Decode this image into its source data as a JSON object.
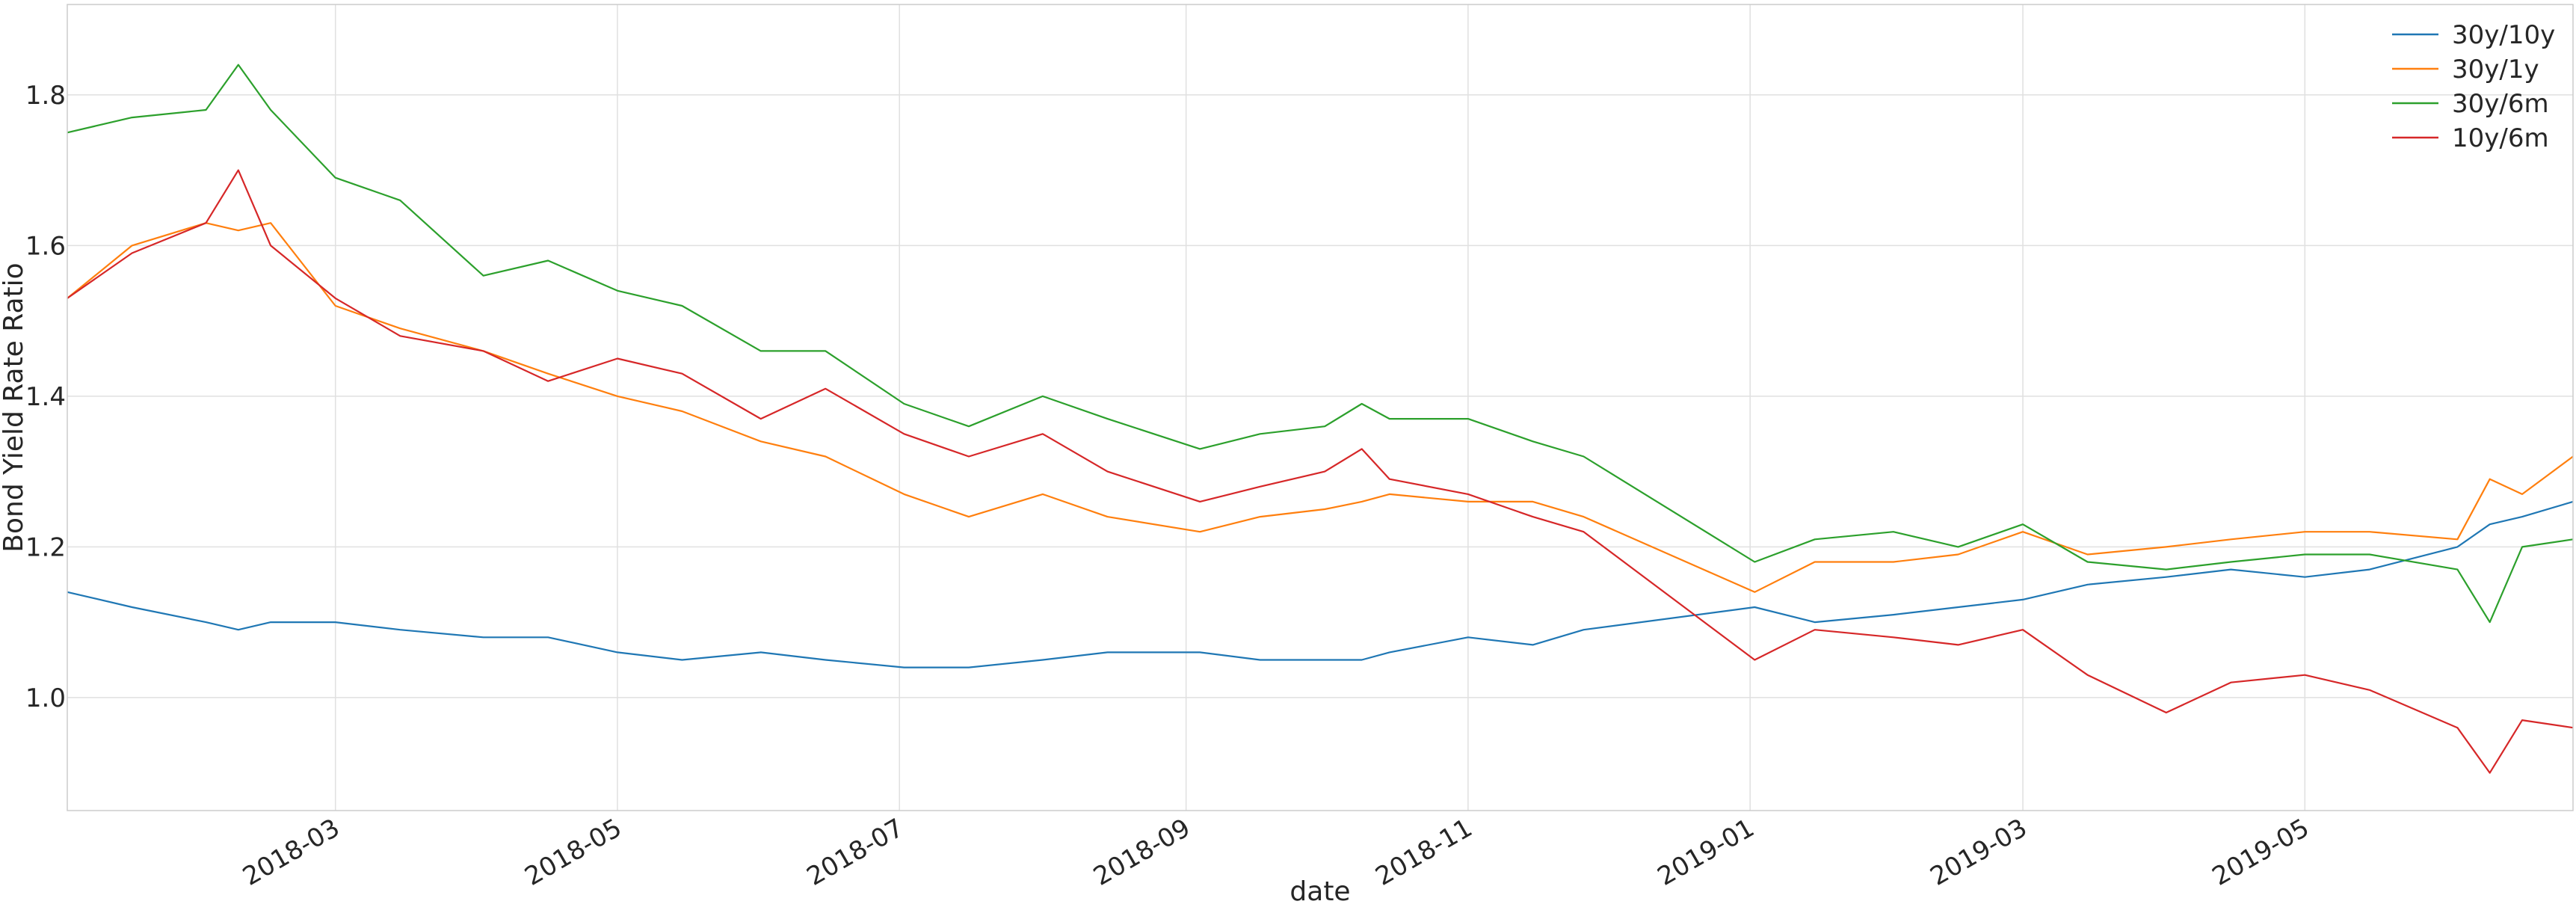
{
  "chart_data": {
    "type": "line",
    "title": "",
    "xlabel": "date",
    "ylabel": "Bond Yield Rate Ratio",
    "xlim": [
      "2018-01-02",
      "2019-06-28"
    ],
    "ylim": [
      0.85,
      1.92
    ],
    "x_ticks": [
      "2018-03",
      "2018-05",
      "2018-07",
      "2018-09",
      "2018-11",
      "2019-01",
      "2019-03",
      "2019-05"
    ],
    "y_ticks": [
      1.0,
      1.2,
      1.4,
      1.6,
      1.8
    ],
    "y_tick_labels": [
      "1.0",
      "1.2",
      "1.4",
      "1.6",
      "1.8"
    ],
    "grid": true,
    "legend_position": "top-right",
    "x": [
      "2018-01-02",
      "2018-01-16",
      "2018-02-01",
      "2018-02-08",
      "2018-02-15",
      "2018-03-01",
      "2018-03-15",
      "2018-04-02",
      "2018-04-16",
      "2018-05-01",
      "2018-05-15",
      "2018-06-01",
      "2018-06-15",
      "2018-07-02",
      "2018-07-16",
      "2018-08-01",
      "2018-08-15",
      "2018-09-04",
      "2018-09-17",
      "2018-10-01",
      "2018-10-09",
      "2018-10-15",
      "2018-11-01",
      "2018-11-15",
      "2018-11-26",
      "2019-01-02",
      "2019-01-15",
      "2019-02-01",
      "2019-02-15",
      "2019-03-01",
      "2019-03-15",
      "2019-04-01",
      "2019-04-15",
      "2019-05-01",
      "2019-05-15",
      "2019-06-03",
      "2019-06-10",
      "2019-06-17",
      "2019-06-28"
    ],
    "series": [
      {
        "name": "30y/10y",
        "color": "#1f77b4",
        "values": [
          1.14,
          1.12,
          1.1,
          1.09,
          1.1,
          1.1,
          1.09,
          1.08,
          1.08,
          1.06,
          1.05,
          1.06,
          1.05,
          1.04,
          1.04,
          1.05,
          1.06,
          1.06,
          1.05,
          1.05,
          1.05,
          1.06,
          1.08,
          1.07,
          1.09,
          1.12,
          1.1,
          1.11,
          1.12,
          1.13,
          1.15,
          1.16,
          1.17,
          1.16,
          1.17,
          1.2,
          1.23,
          1.24,
          1.26
        ]
      },
      {
        "name": "30y/1y",
        "color": "#ff7f0e",
        "values": [
          1.53,
          1.6,
          1.63,
          1.62,
          1.63,
          1.52,
          1.49,
          1.46,
          1.43,
          1.4,
          1.38,
          1.34,
          1.32,
          1.27,
          1.24,
          1.27,
          1.24,
          1.22,
          1.24,
          1.25,
          1.26,
          1.27,
          1.26,
          1.26,
          1.24,
          1.14,
          1.18,
          1.18,
          1.19,
          1.22,
          1.19,
          1.2,
          1.21,
          1.22,
          1.22,
          1.21,
          1.29,
          1.27,
          1.32
        ]
      },
      {
        "name": "30y/6m",
        "color": "#2ca02c",
        "values": [
          1.75,
          1.77,
          1.78,
          1.84,
          1.78,
          1.69,
          1.66,
          1.56,
          1.58,
          1.54,
          1.52,
          1.46,
          1.46,
          1.39,
          1.36,
          1.4,
          1.37,
          1.33,
          1.35,
          1.36,
          1.39,
          1.37,
          1.37,
          1.34,
          1.32,
          1.18,
          1.21,
          1.22,
          1.2,
          1.23,
          1.18,
          1.17,
          1.18,
          1.19,
          1.19,
          1.17,
          1.1,
          1.2,
          1.21
        ]
      },
      {
        "name": "10y/6m",
        "color": "#d62728",
        "values": [
          1.53,
          1.59,
          1.63,
          1.7,
          1.6,
          1.53,
          1.48,
          1.46,
          1.42,
          1.45,
          1.43,
          1.37,
          1.41,
          1.35,
          1.32,
          1.35,
          1.3,
          1.26,
          1.28,
          1.3,
          1.33,
          1.29,
          1.27,
          1.24,
          1.22,
          1.05,
          1.09,
          1.08,
          1.07,
          1.09,
          1.03,
          0.98,
          1.02,
          1.03,
          1.01,
          0.96,
          0.9,
          0.97,
          0.96
        ]
      }
    ]
  }
}
